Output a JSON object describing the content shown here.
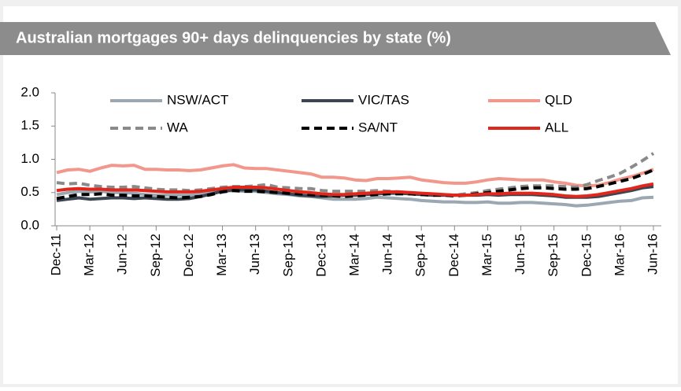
{
  "chart_data": {
    "type": "line",
    "title": "Australian mortgages 90+ days delinquencies by state (%)",
    "categories": [
      "Dec-11",
      null,
      null,
      "Mar-12",
      null,
      null,
      "Jun-12",
      null,
      null,
      "Sep-12",
      null,
      null,
      "Dec-12",
      null,
      null,
      "Mar-13",
      null,
      null,
      "Jun-13",
      null,
      null,
      "Sep-13",
      null,
      null,
      "Dec-13",
      null,
      null,
      "Mar-14",
      null,
      null,
      "Jun-14",
      null,
      null,
      "Sep-14",
      null,
      null,
      "Dec-14",
      null,
      null,
      "Mar-15",
      null,
      null,
      "Jun-15",
      null,
      null,
      "Sep-15",
      null,
      null,
      "Dec-15",
      null,
      null,
      "Mar-16",
      null,
      null,
      "Jun-16"
    ],
    "ylim": [
      0,
      2
    ],
    "yticks": [
      {
        "value": 0,
        "label": "0.0"
      },
      0.5,
      {
        "value": 1,
        "label": "1.0"
      },
      1.5,
      {
        "value": 2,
        "label": "2.0"
      }
    ],
    "grid": false,
    "legend": "top",
    "series": [
      {
        "name": "NSW/ACT",
        "color": "#9ba8b2",
        "dash": false,
        "values": [
          0.47,
          0.5,
          0.52,
          0.51,
          0.52,
          0.5,
          0.5,
          0.49,
          0.47,
          0.46,
          0.46,
          0.46,
          0.46,
          0.48,
          0.5,
          0.52,
          0.53,
          0.52,
          0.52,
          0.5,
          0.48,
          0.47,
          0.45,
          0.44,
          0.42,
          0.4,
          0.4,
          0.4,
          0.41,
          0.43,
          0.42,
          0.41,
          0.4,
          0.38,
          0.37,
          0.36,
          0.36,
          0.35,
          0.35,
          0.36,
          0.34,
          0.34,
          0.35,
          0.35,
          0.34,
          0.33,
          0.32,
          0.3,
          0.31,
          0.33,
          0.35,
          0.37,
          0.38,
          0.42,
          0.43
        ]
      },
      {
        "name": "VIC/TAS",
        "color": "#3b4651",
        "dash": false,
        "values": [
          0.38,
          0.4,
          0.42,
          0.4,
          0.41,
          0.42,
          0.42,
          0.41,
          0.42,
          0.41,
          0.4,
          0.4,
          0.41,
          0.44,
          0.48,
          0.52,
          0.54,
          0.54,
          0.54,
          0.52,
          0.5,
          0.48,
          0.46,
          0.45,
          0.44,
          0.45,
          0.46,
          0.46,
          0.47,
          0.48,
          0.49,
          0.49,
          0.48,
          0.47,
          0.46,
          0.46,
          0.46,
          0.46,
          0.46,
          0.47,
          0.46,
          0.47,
          0.47,
          0.47,
          0.46,
          0.45,
          0.43,
          0.43,
          0.43,
          0.44,
          0.47,
          0.5,
          0.53,
          0.57,
          0.59
        ]
      },
      {
        "name": "QLD",
        "color": "#f2978b",
        "dash": false,
        "values": [
          0.8,
          0.84,
          0.85,
          0.82,
          0.87,
          0.91,
          0.9,
          0.91,
          0.85,
          0.85,
          0.84,
          0.84,
          0.83,
          0.84,
          0.87,
          0.9,
          0.92,
          0.87,
          0.86,
          0.86,
          0.84,
          0.82,
          0.8,
          0.78,
          0.73,
          0.73,
          0.72,
          0.69,
          0.68,
          0.71,
          0.71,
          0.72,
          0.73,
          0.69,
          0.67,
          0.65,
          0.64,
          0.64,
          0.66,
          0.69,
          0.71,
          0.7,
          0.69,
          0.69,
          0.69,
          0.66,
          0.64,
          0.61,
          0.6,
          0.61,
          0.65,
          0.7,
          0.74,
          0.79,
          0.85
        ]
      },
      {
        "name": "WA",
        "color": "#8a8a8a",
        "dash": true,
        "values": [
          0.65,
          0.63,
          0.64,
          0.61,
          0.59,
          0.58,
          0.58,
          0.59,
          0.57,
          0.55,
          0.54,
          0.54,
          0.53,
          0.54,
          0.56,
          0.58,
          0.59,
          0.59,
          0.6,
          0.62,
          0.58,
          0.57,
          0.56,
          0.56,
          0.53,
          0.52,
          0.52,
          0.52,
          0.52,
          0.53,
          0.52,
          0.51,
          0.49,
          0.48,
          0.47,
          0.47,
          0.46,
          0.48,
          0.5,
          0.53,
          0.55,
          0.57,
          0.59,
          0.6,
          0.6,
          0.6,
          0.59,
          0.58,
          0.62,
          0.68,
          0.73,
          0.79,
          0.88,
          0.98,
          1.09
        ]
      },
      {
        "name": "SA/NT",
        "color": "#000000",
        "dash": true,
        "values": [
          0.41,
          0.44,
          0.47,
          0.47,
          0.48,
          0.46,
          0.46,
          0.45,
          0.45,
          0.44,
          0.43,
          0.42,
          0.43,
          0.44,
          0.47,
          0.51,
          0.53,
          0.52,
          0.52,
          0.51,
          0.5,
          0.49,
          0.48,
          0.47,
          0.46,
          0.45,
          0.44,
          0.45,
          0.46,
          0.47,
          0.48,
          0.48,
          0.48,
          0.47,
          0.46,
          0.46,
          0.45,
          0.46,
          0.48,
          0.5,
          0.52,
          0.54,
          0.56,
          0.57,
          0.57,
          0.56,
          0.55,
          0.55,
          0.56,
          0.59,
          0.63,
          0.67,
          0.71,
          0.77,
          0.84
        ]
      },
      {
        "name": "ALL",
        "color": "#e1261c",
        "dash": false,
        "values": [
          0.53,
          0.55,
          0.56,
          0.55,
          0.55,
          0.54,
          0.54,
          0.54,
          0.53,
          0.52,
          0.51,
          0.51,
          0.51,
          0.52,
          0.54,
          0.56,
          0.58,
          0.58,
          0.58,
          0.57,
          0.55,
          0.53,
          0.51,
          0.5,
          0.48,
          0.47,
          0.47,
          0.48,
          0.49,
          0.5,
          0.51,
          0.51,
          0.5,
          0.49,
          0.48,
          0.47,
          0.46,
          0.46,
          0.47,
          0.48,
          0.48,
          0.49,
          0.49,
          0.49,
          0.48,
          0.47,
          0.45,
          0.44,
          0.45,
          0.47,
          0.5,
          0.53,
          0.56,
          0.6,
          0.63
        ]
      }
    ]
  }
}
